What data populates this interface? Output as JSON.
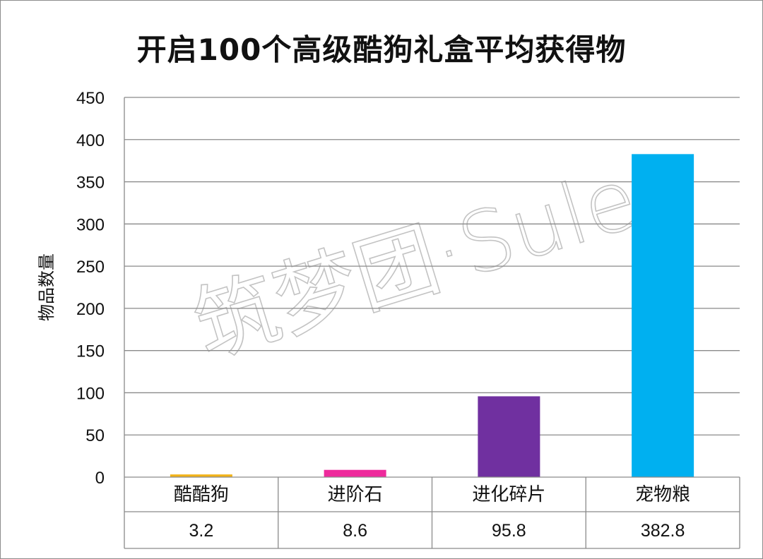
{
  "chart_data": {
    "type": "bar",
    "title": "开启100个高级酷狗礼盒平均获得物",
    "ylabel": "物品数量",
    "xlabel": "",
    "ylim": [
      0,
      450
    ],
    "yticks": [
      0,
      50,
      100,
      150,
      200,
      250,
      300,
      350,
      400,
      450
    ],
    "categories": [
      "酷酷狗",
      "进阶石",
      "进化碎片",
      "宠物粮"
    ],
    "values": [
      3.2,
      8.6,
      95.8,
      382.8
    ],
    "value_labels": [
      "3.2",
      "8.6",
      "95.8",
      "382.8"
    ],
    "colors": [
      "#F2B318",
      "#EE2A9C",
      "#7030A0",
      "#00B0F0"
    ],
    "grid": true,
    "legend": "none",
    "data_table": true,
    "watermark": "筑梦团·Sule"
  }
}
